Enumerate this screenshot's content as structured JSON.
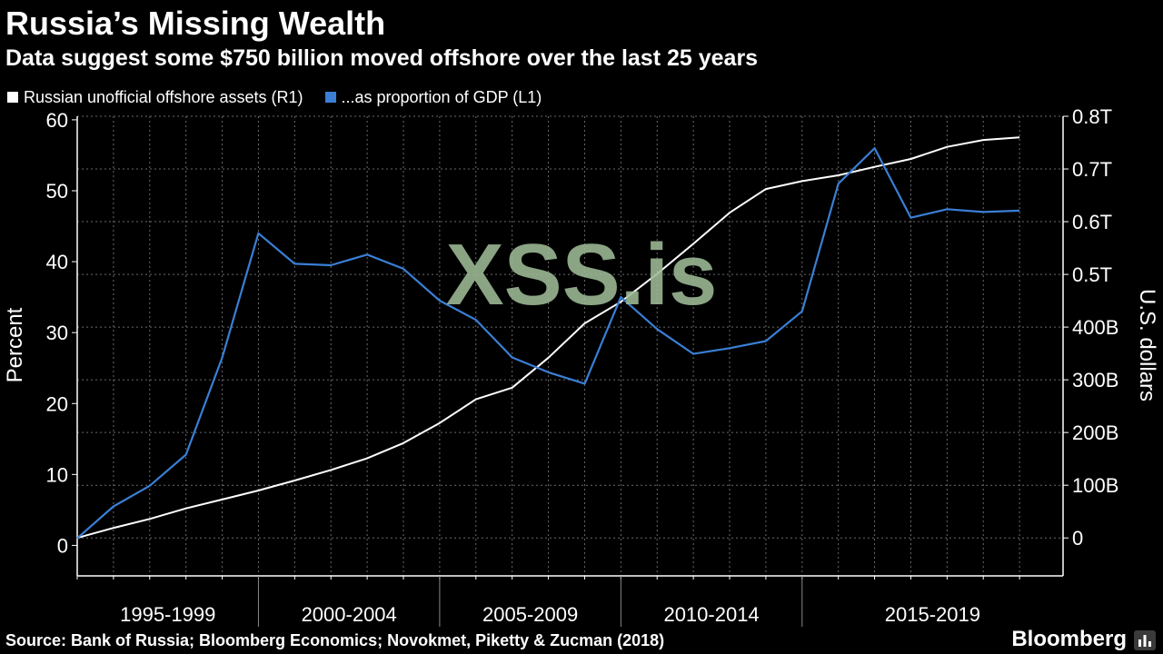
{
  "chart_data": {
    "type": "line",
    "title": "Russia’s Missing Wealth",
    "subtitle": "Data suggest some $750 billion moved offshore over the last 25 years",
    "legend": {
      "placement": "top-left",
      "items": [
        {
          "label": "Russian unofficial offshore assets (R1)",
          "color": "#ffffff"
        },
        {
          "label": "...as proportion of GDP (L1)",
          "color": "#3a7fd5"
        }
      ]
    },
    "x": [
      1993,
      1994,
      1995,
      1996,
      1997,
      1998,
      1999,
      2000,
      2001,
      2002,
      2003,
      2004,
      2005,
      2006,
      2007,
      2008,
      2009,
      2010,
      2011,
      2012,
      2013,
      2014,
      2015,
      2016,
      2017,
      2018,
      2019
    ],
    "x_range": [
      1993,
      2020.2
    ],
    "periods": [
      {
        "label": "1995-1999",
        "start": 1993,
        "end": 1998
      },
      {
        "label": "2000-2004",
        "start": 1998,
        "end": 2003
      },
      {
        "label": "2005-2009",
        "start": 2003,
        "end": 2008
      },
      {
        "label": "2010-2014",
        "start": 2008,
        "end": 2013
      },
      {
        "label": "2015-2019",
        "start": 2013,
        "end": 2020.2
      }
    ],
    "series": [
      {
        "name": "Russian unofficial offshore assets (R1)",
        "axis": "right",
        "color": "#ffffff",
        "values": [
          0,
          19,
          36,
          56,
          73,
          90,
          109,
          129,
          151,
          180,
          218,
          263,
          285,
          342,
          407,
          448,
          501,
          558,
          617,
          662,
          677,
          688,
          704,
          719,
          742,
          755,
          760
        ]
      },
      {
        "name": "...as proportion of GDP (L1)",
        "axis": "left",
        "color": "#3a7fd5",
        "values": [
          1.0,
          5.5,
          8.4,
          12.8,
          26.5,
          44.0,
          39.7,
          39.5,
          41.0,
          39.0,
          34.5,
          31.8,
          26.5,
          24.4,
          22.8,
          35.0,
          30.5,
          27.0,
          27.8,
          28.8,
          33.0,
          51.0,
          56.0,
          46.2,
          47.4,
          47.0,
          47.2
        ]
      }
    ],
    "y_left": {
      "label": "Percent",
      "range": [
        -4.3,
        60.5
      ],
      "ticks": [
        {
          "value": 0,
          "label": "0"
        },
        {
          "value": 10,
          "label": "10"
        },
        {
          "value": 20,
          "label": "20"
        },
        {
          "value": 30,
          "label": "30"
        },
        {
          "value": 40,
          "label": "40"
        },
        {
          "value": 50,
          "label": "50"
        },
        {
          "value": 60,
          "label": "60"
        }
      ]
    },
    "y_right": {
      "label": "U.S. dollars",
      "range": [
        -72,
        800
      ],
      "ticks": [
        {
          "value": 0,
          "label": "0"
        },
        {
          "value": 100,
          "label": "100B"
        },
        {
          "value": 200,
          "label": "200B"
        },
        {
          "value": 300,
          "label": "300B"
        },
        {
          "value": 400,
          "label": "400B"
        },
        {
          "value": 500,
          "label": "0.5T"
        },
        {
          "value": 600,
          "label": "0.6T"
        },
        {
          "value": 700,
          "label": "0.7T"
        },
        {
          "value": 800,
          "label": "0.8T"
        }
      ]
    },
    "grid": true,
    "watermark": "XSS.is",
    "source": "Source: Bank of Russia; Bloomberg Economics; Novokmet, Piketty & Zucman (2018)",
    "brand": "Bloomberg"
  }
}
